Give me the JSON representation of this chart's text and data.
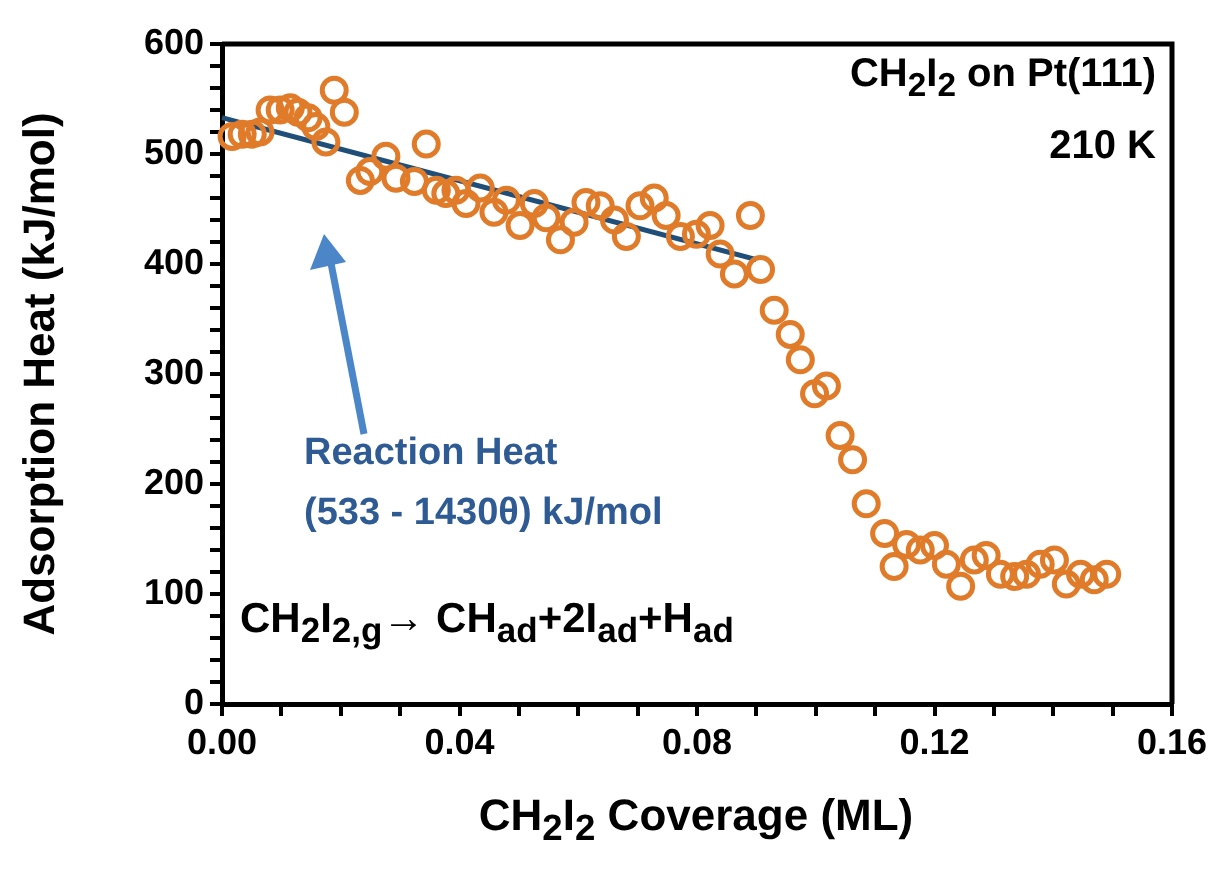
{
  "chart_data": {
    "type": "scatter",
    "xlabel": "CH$_{2}$I$_{2}$ Coverage (ML)",
    "ylabel": "Adsorption Heat (kJ/mol)",
    "xlim": [
      0,
      0.16
    ],
    "ylim": [
      0,
      600
    ],
    "xticks": [
      {
        "value": 0,
        "label": "0.00"
      },
      {
        "value": 0.01,
        "label": null
      },
      {
        "value": 0.02,
        "label": null
      },
      {
        "value": 0.03,
        "label": null
      },
      {
        "value": 0.04,
        "label": "0.04"
      },
      {
        "value": 0.05,
        "label": null
      },
      {
        "value": 0.06,
        "label": null
      },
      {
        "value": 0.07,
        "label": null
      },
      {
        "value": 0.08,
        "label": "0.08"
      },
      {
        "value": 0.09,
        "label": null
      },
      {
        "value": 0.1,
        "label": null
      },
      {
        "value": 0.11,
        "label": null
      },
      {
        "value": 0.12,
        "label": "0.12"
      },
      {
        "value": 0.13,
        "label": null
      },
      {
        "value": 0.14,
        "label": null
      },
      {
        "value": 0.15,
        "label": null
      },
      {
        "value": 0.16,
        "label": "0.16"
      }
    ],
    "yticks": [
      0,
      {
        "value": 20,
        "label": null
      },
      {
        "value": 40,
        "label": null
      },
      {
        "value": 60,
        "label": null
      },
      {
        "value": 80,
        "label": null
      },
      100,
      {
        "value": 120,
        "label": null
      },
      {
        "value": 140,
        "label": null
      },
      {
        "value": 160,
        "label": null
      },
      {
        "value": 180,
        "label": null
      },
      200,
      {
        "value": 220,
        "label": null
      },
      {
        "value": 240,
        "label": null
      },
      {
        "value": 260,
        "label": null
      },
      {
        "value": 280,
        "label": null
      },
      300,
      {
        "value": 320,
        "label": null
      },
      {
        "value": 340,
        "label": null
      },
      {
        "value": 360,
        "label": null
      },
      {
        "value": 380,
        "label": null
      },
      400,
      {
        "value": 420,
        "label": null
      },
      {
        "value": 440,
        "label": null
      },
      {
        "value": 460,
        "label": null
      },
      {
        "value": 480,
        "label": null
      },
      500,
      {
        "value": 520,
        "label": null
      },
      {
        "value": 540,
        "label": null
      },
      {
        "value": 560,
        "label": null
      },
      {
        "value": 580,
        "label": null
      },
      600
    ],
    "grid": false,
    "legend": false,
    "marker": "circle",
    "annotations": [
      "CH$_{2}$I$_{2}$ on Pt(111)",
      "210 K",
      "Reaction Heat",
      "(533 - 1430θ) kJ/mol",
      "CH$_{2}$I$_{2,g}$→ CH$_{ad}$+2I$_{ad}$+H$_{ad}$"
    ],
    "series": [
      {
        "type": "scatter",
        "color": "#e07b2a",
        "x": [
          0.0017,
          0.0034,
          0.0051,
          0.0064,
          0.0081,
          0.0098,
          0.0115,
          0.0128,
          0.0145,
          0.0158,
          0.0175,
          0.0189,
          0.0206,
          0.0233,
          0.0249,
          0.0276,
          0.0293,
          0.0324,
          0.0344,
          0.0361,
          0.0377,
          0.0394,
          0.0411,
          0.0435,
          0.0458,
          0.0479,
          0.0502,
          0.0526,
          0.0546,
          0.057,
          0.0593,
          0.0613,
          0.0637,
          0.0661,
          0.0681,
          0.0704,
          0.0728,
          0.0748,
          0.0772,
          0.0799,
          0.0822,
          0.0839,
          0.0863,
          0.089,
          0.0907,
          0.093,
          0.0957,
          0.0974,
          0.0998,
          0.1018,
          0.1041,
          0.1062,
          0.1085,
          0.1116,
          0.1132,
          0.1153,
          0.1176,
          0.12,
          0.122,
          0.1244,
          0.1267,
          0.1287,
          0.1311,
          0.1335,
          0.1355,
          0.1378,
          0.1402,
          0.1422,
          0.1446,
          0.1469,
          0.149
        ],
        "values": [
          516,
          518,
          518,
          520,
          540,
          540,
          542,
          538,
          533,
          525,
          511,
          558,
          538,
          476,
          484,
          498,
          478,
          475,
          509,
          467,
          464,
          467,
          455,
          469,
          447,
          458,
          435,
          455,
          442,
          422,
          438,
          456,
          453,
          440,
          425,
          453,
          460,
          444,
          425,
          427,
          435,
          409,
          391,
          444,
          395,
          358,
          336,
          313,
          282,
          289,
          244,
          222,
          182,
          155,
          125,
          145,
          140,
          144,
          127,
          107,
          131,
          135,
          118,
          116,
          118,
          127,
          131,
          109,
          118,
          113,
          118
        ]
      },
      {
        "type": "line",
        "color": "#1f4e79",
        "marker": "none",
        "x": [
          0,
          0.09
        ],
        "values": [
          533,
          404
        ]
      }
    ]
  }
}
